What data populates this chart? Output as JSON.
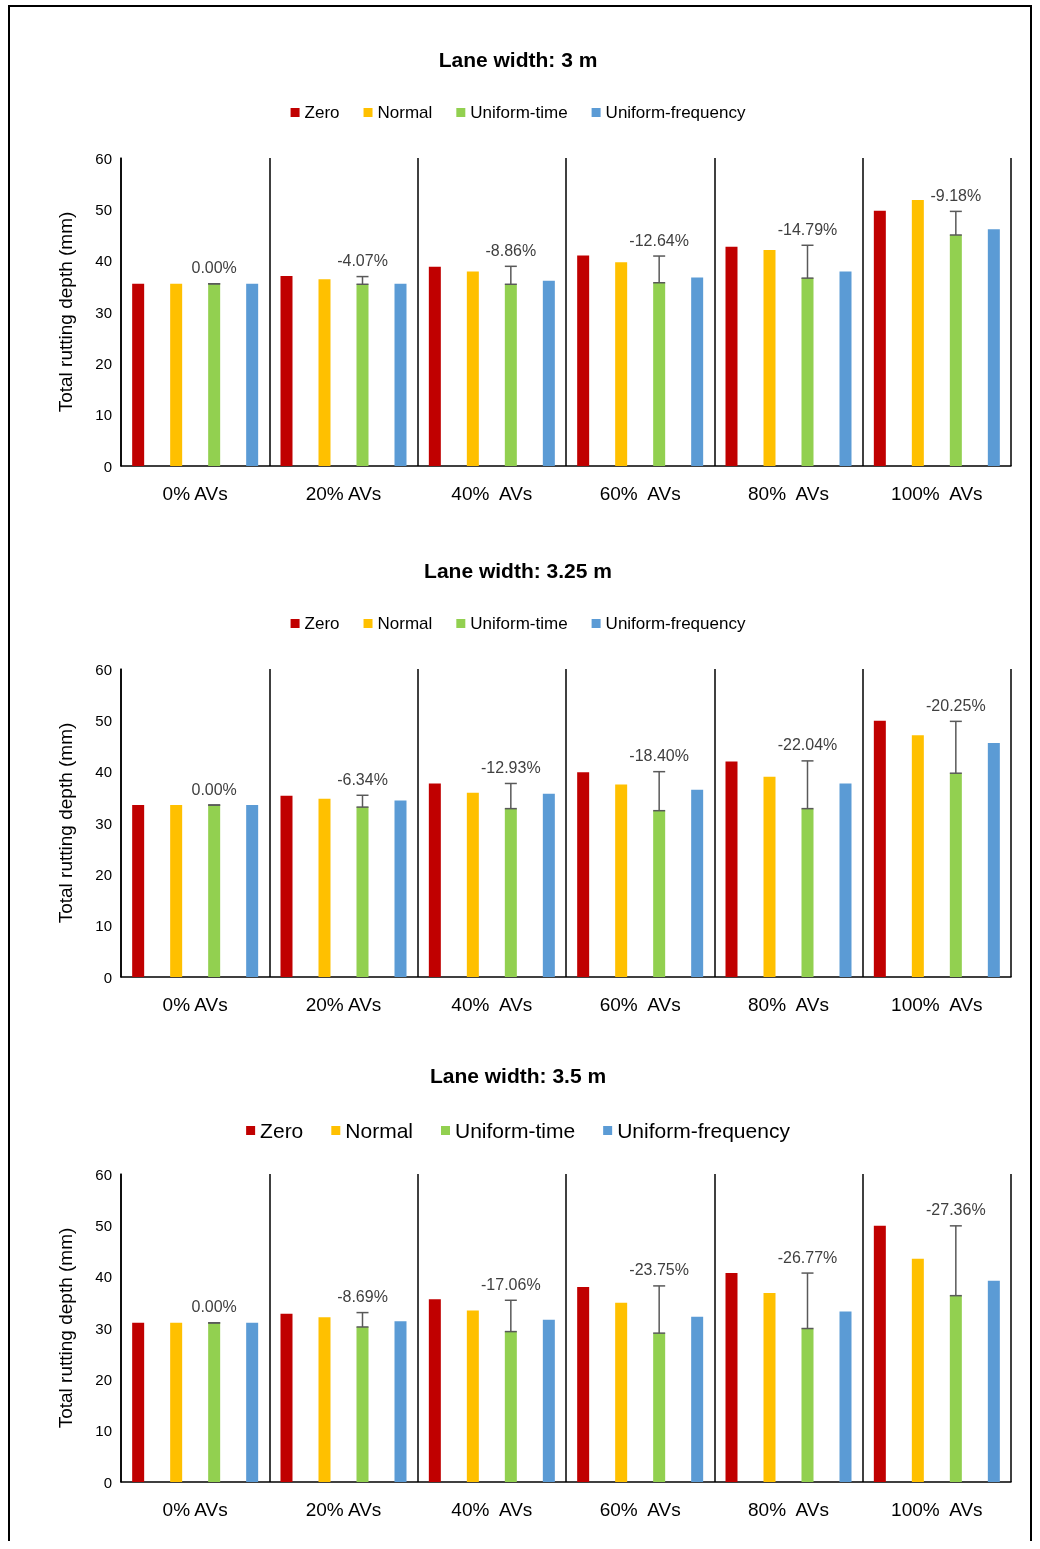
{
  "chart_data": [
    {
      "type": "bar",
      "title": "Lane width: 3 m",
      "ylabel": "Total rutting depth (mm)",
      "categories": [
        "0% AVs",
        "20% AVs",
        "40%  AVs",
        "60%  AVs",
        "80%  AVs",
        "100%  AVs"
      ],
      "series": [
        {
          "name": "Zero",
          "color": "#c00000",
          "values": [
            35.5,
            37.0,
            38.8,
            41.0,
            42.7,
            49.7
          ]
        },
        {
          "name": "Normal",
          "color": "#ffc000",
          "values": [
            35.5,
            36.4,
            37.9,
            39.7,
            42.1,
            51.8
          ]
        },
        {
          "name": "Uniform-time",
          "color": "#92d050",
          "values": [
            35.5,
            35.4,
            35.4,
            35.7,
            36.6,
            45.0
          ],
          "errors": [
            [
              35.5,
              35.5
            ],
            [
              35.4,
              36.9
            ],
            [
              35.4,
              38.9
            ],
            [
              35.7,
              40.9
            ],
            [
              36.6,
              43.0
            ],
            [
              45.0,
              49.6
            ]
          ]
        },
        {
          "name": "Uniform-frequency",
          "color": "#5b9bd5",
          "values": [
            35.5,
            35.5,
            36.1,
            36.7,
            37.9,
            46.1
          ]
        }
      ],
      "ylim": [
        0,
        60
      ],
      "yticks": [
        0,
        10,
        20,
        30,
        40,
        50,
        60
      ],
      "grid": "x",
      "legend": "top",
      "annotations": [
        "0.00%",
        "-4.07%",
        "-8.86%",
        "-12.64%",
        "-14.79%",
        "-9.18%"
      ]
    },
    {
      "type": "bar",
      "title": "Lane width: 3.25 m",
      "ylabel": "Total rutting depth (mm)",
      "categories": [
        "0% AVs",
        "20% AVs",
        "40%  AVs",
        "60%  AVs",
        "80%  AVs",
        "100%  AVs"
      ],
      "series": [
        {
          "name": "Zero",
          "color": "#c00000",
          "values": [
            33.5,
            35.3,
            37.7,
            39.9,
            42.0,
            49.9
          ]
        },
        {
          "name": "Normal",
          "color": "#ffc000",
          "values": [
            33.5,
            34.7,
            35.9,
            37.5,
            39.0,
            47.1
          ]
        },
        {
          "name": "Uniform-time",
          "color": "#92d050",
          "values": [
            33.5,
            33.1,
            32.8,
            32.4,
            32.8,
            39.7
          ],
          "errors": [
            [
              33.5,
              33.5
            ],
            [
              33.1,
              35.4
            ],
            [
              32.8,
              37.7
            ],
            [
              32.4,
              40.0
            ],
            [
              32.8,
              42.1
            ],
            [
              39.7,
              49.8
            ]
          ]
        },
        {
          "name": "Uniform-frequency",
          "color": "#5b9bd5",
          "values": [
            33.5,
            34.4,
            35.7,
            36.5,
            37.7,
            45.6
          ]
        }
      ],
      "ylim": [
        0,
        60
      ],
      "yticks": [
        0,
        10,
        20,
        30,
        40,
        50,
        60
      ],
      "grid": "x",
      "legend": "top",
      "annotations": [
        "0.00%",
        "-6.34%",
        "-12.93%",
        "-18.40%",
        "-22.04%",
        "-20.25%"
      ]
    },
    {
      "type": "bar",
      "title": "Lane width: 3.5 m",
      "ylabel": "Total rutting depth (mm)",
      "categories": [
        "0% AVs",
        "20% AVs",
        "40%  AVs",
        "60%  AVs",
        "80%  AVs",
        "100%  AVs"
      ],
      "series": [
        {
          "name": "Zero",
          "color": "#c00000",
          "values": [
            31.0,
            32.8,
            35.6,
            38.0,
            40.7,
            49.9
          ]
        },
        {
          "name": "Normal",
          "color": "#ffc000",
          "values": [
            31.0,
            32.1,
            33.4,
            34.9,
            36.8,
            43.5
          ]
        },
        {
          "name": "Uniform-time",
          "color": "#92d050",
          "values": [
            31.0,
            30.2,
            29.3,
            29.0,
            29.9,
            36.3
          ],
          "errors": [
            [
              31.0,
              31.0
            ],
            [
              30.2,
              33.0
            ],
            [
              29.3,
              35.4
            ],
            [
              29.0,
              38.2
            ],
            [
              29.9,
              40.7
            ],
            [
              36.3,
              49.9
            ]
          ]
        },
        {
          "name": "Uniform-frequency",
          "color": "#5b9bd5",
          "values": [
            31.0,
            31.3,
            31.6,
            32.2,
            33.2,
            39.2
          ]
        }
      ],
      "ylim": [
        0,
        60
      ],
      "yticks": [
        0,
        10,
        20,
        30,
        40,
        50,
        60
      ],
      "grid": "x",
      "legend": "top",
      "annotations": [
        "0.00%",
        "-8.69%",
        "-17.06%",
        "-23.75%",
        "-26.77%",
        "-27.36%"
      ]
    }
  ]
}
